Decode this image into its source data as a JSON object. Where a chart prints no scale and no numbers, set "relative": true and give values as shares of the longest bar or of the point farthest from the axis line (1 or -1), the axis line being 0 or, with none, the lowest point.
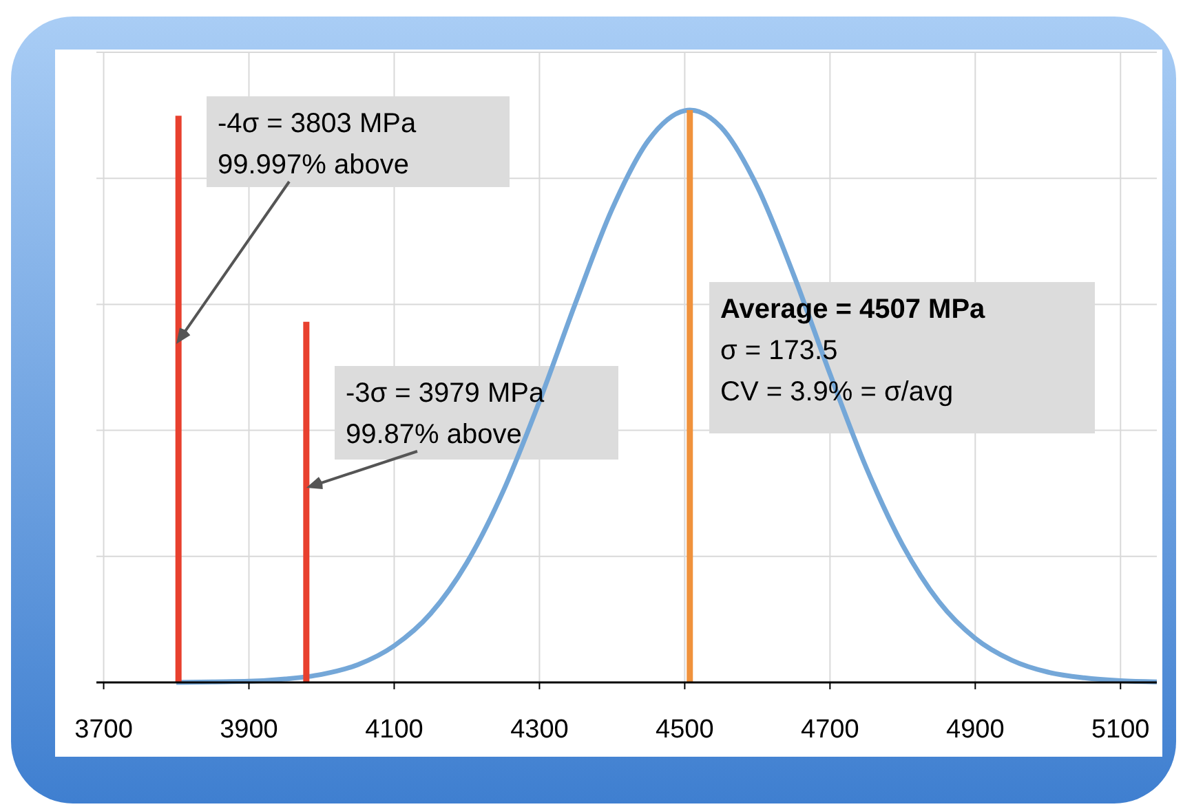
{
  "chart_data": {
    "type": "line",
    "relative": true,
    "xlim": [
      3690,
      5150
    ],
    "xticks": [
      3700,
      3900,
      4100,
      4300,
      4500,
      4700,
      4900,
      5100
    ],
    "grid": true,
    "marker": "none",
    "line_style": "solid",
    "series": [
      {
        "color": "#74a7d8",
        "x": [
          3800,
          3850,
          3900,
          3950,
          4000,
          4050,
          4100,
          4150,
          4200,
          4250,
          4300,
          4350,
          4400,
          4450,
          4500,
          4507,
          4550,
          4600,
          4650,
          4700,
          4750,
          4800,
          4850,
          4900,
          4950,
          5000,
          5050,
          5100,
          5150
        ],
        "values": [
          0,
          0.001,
          0.002,
          0.006,
          0.014,
          0.031,
          0.064,
          0.12,
          0.209,
          0.334,
          0.491,
          0.664,
          0.827,
          0.947,
          0.999,
          1,
          0.97,
          0.866,
          0.712,
          0.539,
          0.375,
          0.24,
          0.141,
          0.077,
          0.039,
          0.018,
          0.008,
          0.003,
          0.001
        ]
      },
      {
        "color": "#e8402e",
        "x": [
          3803,
          3803
        ],
        "values": [
          0,
          0.99
        ]
      },
      {
        "color": "#e8402e",
        "x": [
          3979,
          3979
        ],
        "values": [
          0,
          0.63
        ]
      },
      {
        "color": "#f0923c",
        "x": [
          4507,
          4507
        ],
        "values": [
          0,
          1
        ]
      }
    ],
    "annotations": [
      "-4σ = 3803 MPa\n99.997% above",
      {
        "text": "-3σ = 3979 MPa\n99.87% above",
        "x": 3979,
        "y": 0.34
      },
      "Average = 4507 MPa\nσ = 173.5\nCV = 3.9% = σ/avg"
    ]
  }
}
